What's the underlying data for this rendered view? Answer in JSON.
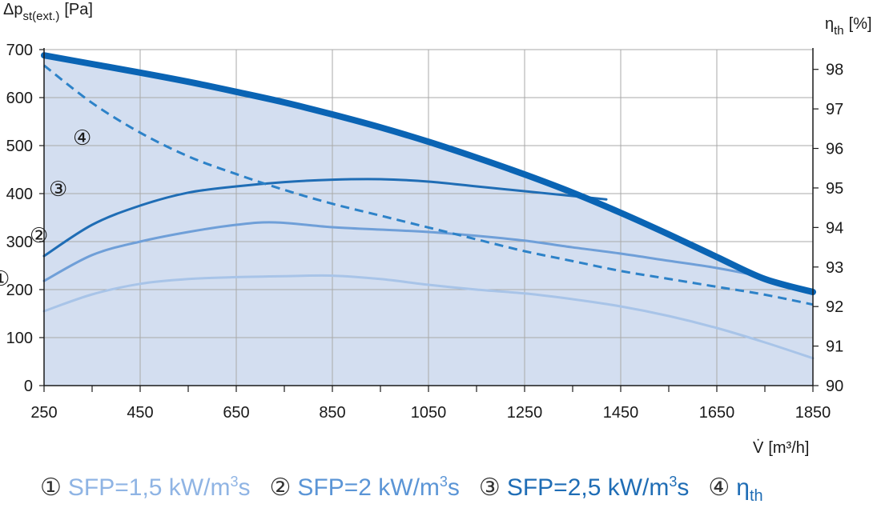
{
  "chart_data": {
    "type": "line",
    "title": "",
    "y_left_label": "Δp",
    "y_left_label_sub": "st(ext.)",
    "y_left_unit": "[Pa]",
    "y_right_label": "η",
    "y_right_label_sub": "th",
    "y_right_unit": "[%]",
    "x_label": "V̇",
    "x_unit": "[m³/h]",
    "xlim": [
      250,
      1850
    ],
    "ylim_left": [
      0,
      700
    ],
    "ylim_right": [
      90,
      98.5
    ],
    "x_ticks": [
      "250",
      "450",
      "650",
      "850",
      "1050",
      "1250",
      "1450",
      "1650",
      "1850"
    ],
    "y_left_ticks": [
      "0",
      "100",
      "200",
      "300",
      "400",
      "500",
      "600",
      "700"
    ],
    "y_right_ticks": [
      "90",
      "91",
      "92",
      "93",
      "94",
      "95",
      "96",
      "97",
      "98"
    ],
    "grid": true,
    "series": [
      {
        "name": "SFP=1,5 kW/m³s",
        "marker": "①",
        "axis": "left",
        "style": "solid",
        "color": "#a8c4e8",
        "x": [
          250,
          350,
          450,
          550,
          650,
          750,
          850,
          950,
          1050,
          1150,
          1250,
          1350,
          1450,
          1550,
          1650,
          1750,
          1850
        ],
        "y": [
          155,
          190,
          212,
          222,
          226,
          228,
          229,
          222,
          210,
          200,
          192,
          180,
          165,
          145,
          120,
          90,
          57
        ]
      },
      {
        "name": "SFP=2 kW/m³s",
        "marker": "②",
        "axis": "left",
        "style": "solid",
        "color": "#6f9fd8",
        "x": [
          250,
          350,
          450,
          550,
          650,
          730,
          850,
          950,
          1050,
          1150,
          1250,
          1350,
          1450,
          1550,
          1650,
          1750,
          1850
        ],
        "y": [
          218,
          272,
          300,
          320,
          335,
          340,
          330,
          325,
          320,
          312,
          302,
          288,
          275,
          260,
          245,
          225,
          197
        ]
      },
      {
        "name": "SFP=2,5 kW/m³s",
        "marker": "③",
        "axis": "left",
        "style": "solid",
        "color": "#1f6db5",
        "x": [
          250,
          350,
          450,
          550,
          650,
          750,
          850,
          950,
          1050,
          1150,
          1250,
          1350,
          1420
        ],
        "y": [
          270,
          335,
          375,
          402,
          415,
          424,
          429,
          430,
          425,
          415,
          405,
          395,
          388
        ]
      },
      {
        "name": "η",
        "name_sub": "th",
        "marker": "④",
        "axis": "right",
        "style": "dashed",
        "color": "#2d82c8",
        "x": [
          250,
          350,
          450,
          550,
          650,
          750,
          850,
          950,
          1050,
          1150,
          1250,
          1350,
          1450,
          1550,
          1650,
          1750,
          1850
        ],
        "y": [
          98.1,
          97.15,
          96.4,
          95.8,
          95.35,
          94.95,
          94.6,
          94.3,
          94.0,
          93.7,
          93.4,
          93.15,
          92.9,
          92.7,
          92.5,
          92.3,
          92.05
        ]
      },
      {
        "name": "",
        "axis": "left",
        "style": "thick",
        "color": "#0a64b4",
        "x": [
          250,
          350,
          450,
          550,
          650,
          750,
          850,
          950,
          1050,
          1150,
          1250,
          1350,
          1450,
          1550,
          1650,
          1750,
          1850
        ],
        "y": [
          688,
          670,
          652,
          633,
          612,
          590,
          565,
          538,
          508,
          475,
          440,
          402,
          360,
          315,
          268,
          222,
          195
        ]
      }
    ],
    "markers_text": [
      "①",
      "②",
      "③",
      "④"
    ]
  },
  "legend": {
    "items": [
      {
        "num": "①",
        "text": "SFP=1,5 kW/m",
        "sup": "3",
        "after": "s",
        "color": "#8fb4e4"
      },
      {
        "num": "②",
        "text": "SFP=2 kW/m",
        "sup": "3",
        "after": "s",
        "color": "#5b95d6"
      },
      {
        "num": "③",
        "text": "SFP=2,5 kW/m",
        "sup": "3",
        "after": "s",
        "color": "#1f6db5"
      },
      {
        "num": "④",
        "text": "η",
        "sub": "th",
        "after": "",
        "color": "#1f6db5"
      }
    ]
  },
  "colors": {
    "area_fill": "#d3def0",
    "grid": "#a9a9a9",
    "axis": "#1a1a1a"
  }
}
